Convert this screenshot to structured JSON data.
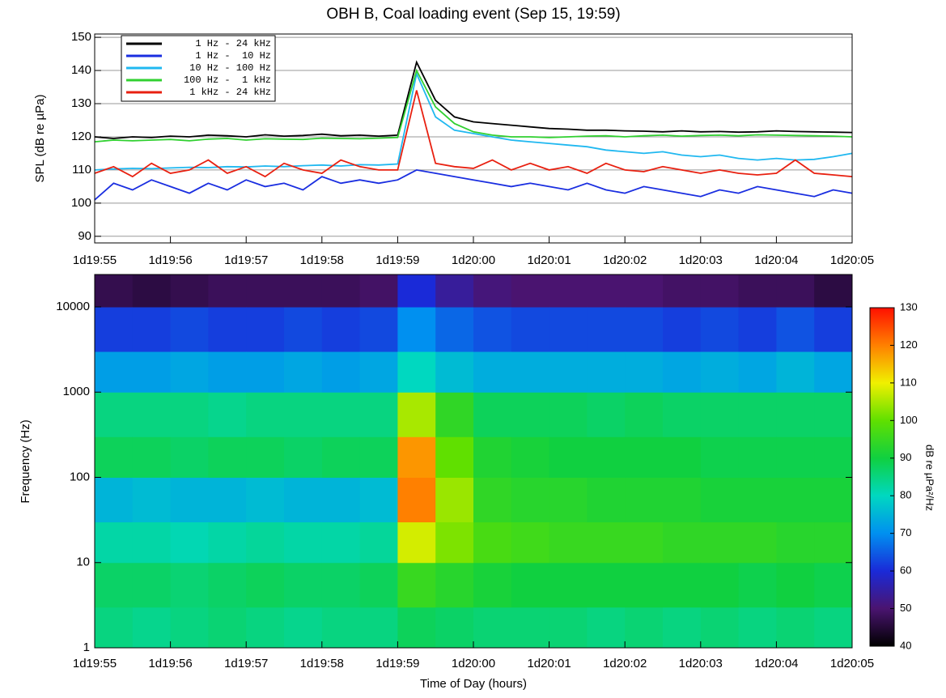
{
  "chart_data": [
    {
      "type": "line",
      "title": "OBH B, Coal loading event (Sep 15, 19:59)",
      "ylabel": "SPL (dB re µPa)",
      "x": [
        1195,
        1195.25,
        1195.5,
        1195.75,
        1196,
        1196.25,
        1196.5,
        1196.75,
        1197,
        1197.25,
        1197.5,
        1197.75,
        1198,
        1198.25,
        1198.5,
        1198.75,
        1199,
        1199.25,
        1199.5,
        1199.75,
        1200,
        1200.25,
        1200.5,
        1200.75,
        1201,
        1201.25,
        1201.5,
        1201.75,
        1202,
        1202.25,
        1202.5,
        1202.75,
        1203,
        1203.25,
        1203.5,
        1203.75,
        1204,
        1204.25,
        1204.5,
        1204.75,
        1205
      ],
      "xlim": [
        1195,
        1205
      ],
      "xticks": [
        {
          "value": 1195,
          "label": "1d19:55"
        },
        {
          "value": 1196,
          "label": "1d19:56"
        },
        {
          "value": 1197,
          "label": "1d19:57"
        },
        {
          "value": 1198,
          "label": "1d19:58"
        },
        {
          "value": 1199,
          "label": "1d19:59"
        },
        {
          "value": 1200,
          "label": "1d20:00"
        },
        {
          "value": 1201,
          "label": "1d20:01"
        },
        {
          "value": 1202,
          "label": "1d20:02"
        },
        {
          "value": 1203,
          "label": "1d20:03"
        },
        {
          "value": 1204,
          "label": "1d20:04"
        },
        {
          "value": 1205,
          "label": "1d20:05"
        }
      ],
      "ylim": [
        88,
        151
      ],
      "yticks": [
        90,
        100,
        110,
        120,
        130,
        140,
        150
      ],
      "grid": true,
      "legend": "upper left",
      "series": [
        {
          "name": "1 Hz - 24 kHz",
          "color": "#000000",
          "values": [
            120,
            119.5,
            120,
            119.8,
            120.2,
            120,
            120.5,
            120.3,
            120,
            120.6,
            120.2,
            120.4,
            120.8,
            120.3,
            120.5,
            120.2,
            120.5,
            142.5,
            131,
            126,
            124.5,
            124,
            123.5,
            123,
            122.5,
            122.3,
            122,
            122,
            121.8,
            121.7,
            121.5,
            121.8,
            121.5,
            121.6,
            121.4,
            121.5,
            121.8,
            121.6,
            121.5,
            121.4,
            121.3
          ]
        },
        {
          "name": "1 Hz -  10 Hz",
          "color": "#1a2ee0",
          "values": [
            101,
            106,
            104,
            107,
            105,
            103,
            106,
            104,
            107,
            105,
            106,
            104,
            108,
            106,
            107,
            106,
            107,
            110,
            109,
            108,
            107,
            106,
            105,
            106,
            105,
            104,
            106,
            104,
            103,
            105,
            104,
            103,
            102,
            104,
            103,
            105,
            104,
            103,
            102,
            104,
            103
          ]
        },
        {
          "name": "10 Hz - 100 Hz",
          "color": "#20b8f0",
          "values": [
            110,
            110.3,
            110.5,
            110.4,
            110.6,
            110.8,
            110.7,
            111,
            110.9,
            111.2,
            111,
            111.3,
            111.5,
            111.2,
            111.6,
            111.5,
            111.8,
            139,
            126,
            122,
            121,
            120,
            119,
            118.5,
            118,
            117.5,
            117,
            116,
            115.5,
            115,
            115.5,
            114.5,
            114,
            114.5,
            113.5,
            113,
            113.5,
            113,
            113.2,
            114,
            115
          ]
        },
        {
          "name": "100 Hz -  1 kHz",
          "color": "#30d030",
          "values": [
            118.5,
            119,
            118.8,
            119,
            119.2,
            118.8,
            119.3,
            119.5,
            119,
            119.4,
            119.3,
            119.2,
            119.6,
            119.5,
            119.4,
            119.6,
            119.8,
            140,
            129,
            124,
            121.5,
            120.5,
            120,
            120,
            119.8,
            120,
            120.2,
            120.3,
            120,
            120.3,
            120.5,
            120.2,
            120.4,
            120.5,
            120.3,
            120.6,
            120.5,
            120.4,
            120.3,
            120.2,
            120
          ]
        },
        {
          "name": "1 kHz - 24 kHz",
          "color": "#e82010",
          "values": [
            109,
            111,
            108,
            112,
            109,
            110,
            113,
            109,
            111,
            108,
            112,
            110,
            109,
            113,
            111,
            110,
            110,
            134,
            112,
            111,
            110.5,
            113,
            110,
            112,
            110,
            111,
            109,
            112,
            110,
            109.5,
            111,
            110,
            109,
            110,
            109,
            108.5,
            109,
            113,
            109,
            108.5,
            108
          ]
        }
      ]
    },
    {
      "type": "heatmap",
      "ylabel": "Frequency (Hz)",
      "xlabel": "Time of Day (hours)",
      "x_edges": [
        1195,
        1195.5,
        1196,
        1196.5,
        1197,
        1197.5,
        1198,
        1198.5,
        1199,
        1199.5,
        1200,
        1200.5,
        1201,
        1201.5,
        1202,
        1202.5,
        1203,
        1203.5,
        1204,
        1204.5,
        1205
      ],
      "y_edges": [
        1,
        3,
        10,
        30,
        100,
        300,
        1000,
        3000,
        10000,
        24000
      ],
      "values": [
        [
          85,
          87,
          82,
          75,
          88,
          85,
          72,
          62,
          47
        ],
        [
          84,
          87,
          82,
          76,
          88,
          85,
          72,
          62,
          46
        ],
        [
          85,
          86,
          81,
          75,
          87,
          85,
          73,
          63,
          47
        ],
        [
          86,
          87,
          82,
          75,
          88,
          84,
          72,
          62,
          48
        ],
        [
          85,
          88,
          83,
          76,
          88,
          85,
          72,
          62,
          48
        ],
        [
          84,
          87,
          82,
          75,
          87,
          85,
          73,
          63,
          48
        ],
        [
          85,
          87,
          82,
          75,
          88,
          85,
          72,
          62,
          48
        ],
        [
          85,
          88,
          83,
          76,
          88,
          85,
          73,
          63,
          49
        ],
        [
          88,
          95,
          108,
          120,
          118,
          105,
          80,
          70,
          60
        ],
        [
          87,
          93,
          102,
          104,
          100,
          94,
          76,
          66,
          54
        ],
        [
          86,
          91,
          97,
          94,
          92,
          88,
          74,
          64,
          51
        ],
        [
          86,
          90,
          96,
          93,
          91,
          88,
          74,
          63,
          50
        ],
        [
          86,
          90,
          95,
          93,
          90,
          88,
          74,
          63,
          50
        ],
        [
          85,
          90,
          95,
          92,
          90,
          87,
          74,
          63,
          50
        ],
        [
          86,
          90,
          95,
          92,
          90,
          88,
          74,
          63,
          50
        ],
        [
          85,
          90,
          94,
          92,
          90,
          87,
          73,
          62,
          49
        ],
        [
          86,
          90,
          94,
          91,
          89,
          87,
          74,
          63,
          49
        ],
        [
          85,
          89,
          94,
          91,
          89,
          87,
          73,
          62,
          48
        ],
        [
          86,
          90,
          93,
          91,
          89,
          87,
          75,
          64,
          48
        ],
        [
          85,
          89,
          93,
          91,
          89,
          87,
          73,
          62,
          46
        ]
      ],
      "xlim": [
        1195,
        1205
      ],
      "xticks": [
        {
          "value": 1195,
          "label": "1d19:55"
        },
        {
          "value": 1196,
          "label": "1d19:56"
        },
        {
          "value": 1197,
          "label": "1d19:57"
        },
        {
          "value": 1198,
          "label": "1d19:58"
        },
        {
          "value": 1199,
          "label": "1d19:59"
        },
        {
          "value": 1200,
          "label": "1d20:00"
        },
        {
          "value": 1201,
          "label": "1d20:01"
        },
        {
          "value": 1202,
          "label": "1d20:02"
        },
        {
          "value": 1203,
          "label": "1d20:03"
        },
        {
          "value": 1204,
          "label": "1d20:04"
        },
        {
          "value": 1205,
          "label": "1d20:05"
        }
      ],
      "ylim": [
        1,
        24000
      ],
      "yticks": [
        1,
        10,
        100,
        1000,
        10000
      ],
      "log_y": true,
      "zlim": [
        40,
        130
      ],
      "zticks": [
        40,
        50,
        60,
        70,
        80,
        90,
        100,
        110,
        120,
        130
      ],
      "colorbar_label": "dB re µPa²/Hz",
      "colormap": [
        "#000000",
        "#4a1470",
        "#1a2ad8",
        "#0090f0",
        "#00d8c0",
        "#10d040",
        "#60e000",
        "#f0f000",
        "#ff8000",
        "#ff1000"
      ]
    }
  ]
}
